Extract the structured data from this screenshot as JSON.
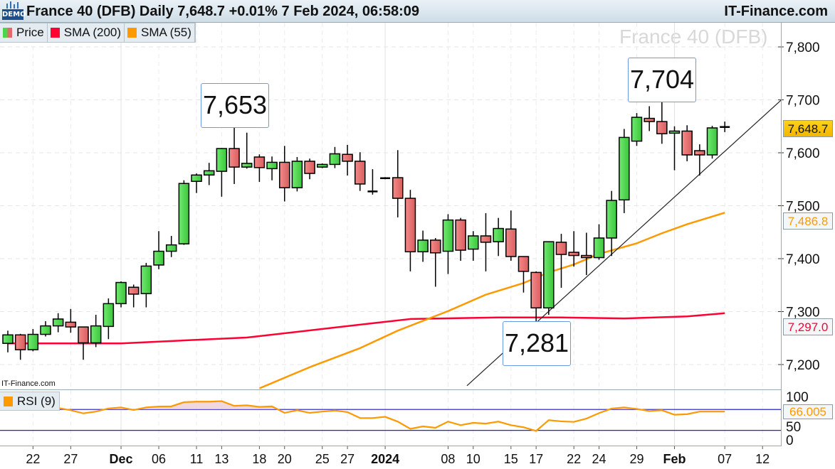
{
  "header": {
    "title": "France 40 (DFB) Daily 7,648.7 +0.01% 7 Feb 2024, 06:58:09",
    "brand": "IT-Finance.com",
    "demo_badge": "DEMO"
  },
  "legend": {
    "items": [
      {
        "label": "Price",
        "color_up": "#4cd64c",
        "color_down": "#e26a6a"
      },
      {
        "label": "SMA (200)",
        "color": "#ff0033"
      },
      {
        "label": "SMA (55)",
        "color": "#ff9900"
      }
    ]
  },
  "watermark_title": "France 40 (DFB)",
  "small_brand": "IT-Finance.com",
  "rsi_legend": {
    "label": "RSI (9)",
    "color": "#ff9900"
  },
  "callouts": {
    "high1": "7,653",
    "high2": "7,704",
    "low1": "7,281"
  },
  "price_tags": {
    "last": "7,648.7",
    "sma55": "7,486.8",
    "sma200": "7,297.0"
  },
  "rsi_tag": "66.005",
  "chart_data": {
    "type": "candlestick",
    "title": "France 40 (DFB) Daily",
    "ylim": [
      7160,
      7860
    ],
    "yticks": [
      "7,200",
      "7,300",
      "7,400",
      "7,500",
      "7,600",
      "7,700",
      "7,800"
    ],
    "ytick_values": [
      7200,
      7300,
      7400,
      7500,
      7600,
      7700,
      7800
    ],
    "grid": true,
    "colors": {
      "up": "#4cd64c",
      "down": "#e26a6a",
      "sma200": "#ff0033",
      "sma55": "#ff9900",
      "rsi": "#ff9900",
      "rsi_bands": "#2222cc",
      "trendline": "#222222"
    },
    "xticks": [
      {
        "label": "22",
        "index": 2,
        "bold": false
      },
      {
        "label": "27",
        "index": 5,
        "bold": false
      },
      {
        "label": "Dec",
        "index": 9,
        "bold": true
      },
      {
        "label": "06",
        "index": 12,
        "bold": false
      },
      {
        "label": "11",
        "index": 15,
        "bold": false
      },
      {
        "label": "13",
        "index": 17,
        "bold": false
      },
      {
        "label": "18",
        "index": 20,
        "bold": false
      },
      {
        "label": "20",
        "index": 22,
        "bold": false
      },
      {
        "label": "25",
        "index": 25,
        "bold": false
      },
      {
        "label": "27",
        "index": 27,
        "bold": false
      },
      {
        "label": "2024",
        "index": 30,
        "bold": true
      },
      {
        "label": "08",
        "index": 35,
        "bold": false
      },
      {
        "label": "10",
        "index": 37,
        "bold": false
      },
      {
        "label": "15",
        "index": 40,
        "bold": false
      },
      {
        "label": "17",
        "index": 42,
        "bold": false
      },
      {
        "label": "22",
        "index": 45,
        "bold": false
      },
      {
        "label": "24",
        "index": 47,
        "bold": false
      },
      {
        "label": "29",
        "index": 50,
        "bold": false
      },
      {
        "label": "Feb",
        "index": 53,
        "bold": true
      },
      {
        "label": "07",
        "index": 57,
        "bold": false
      },
      {
        "label": "12",
        "index": 60,
        "bold": false
      }
    ],
    "ohlc": [
      [
        7240,
        7264,
        7223,
        7256
      ],
      [
        7256,
        7258,
        7209,
        7228
      ],
      [
        7228,
        7267,
        7225,
        7257
      ],
      [
        7257,
        7282,
        7253,
        7273
      ],
      [
        7273,
        7297,
        7261,
        7286
      ],
      [
        7280,
        7305,
        7260,
        7271
      ],
      [
        7271,
        7271,
        7209,
        7241
      ],
      [
        7241,
        7294,
        7233,
        7273
      ],
      [
        7272,
        7325,
        7248,
        7315
      ],
      [
        7315,
        7357,
        7308,
        7355
      ],
      [
        7346,
        7351,
        7308,
        7333
      ],
      [
        7334,
        7392,
        7308,
        7386
      ],
      [
        7388,
        7452,
        7380,
        7414
      ],
      [
        7414,
        7443,
        7403,
        7426
      ],
      [
        7428,
        7548,
        7426,
        7542
      ],
      [
        7546,
        7561,
        7524,
        7558
      ],
      [
        7558,
        7581,
        7539,
        7566
      ],
      [
        7565,
        7609,
        7517,
        7608
      ],
      [
        7608,
        7653,
        7541,
        7573
      ],
      [
        7573,
        7638,
        7570,
        7580
      ],
      [
        7592,
        7597,
        7545,
        7572
      ],
      [
        7570,
        7593,
        7548,
        7582
      ],
      [
        7582,
        7613,
        7508,
        7534
      ],
      [
        7534,
        7592,
        7527,
        7584
      ],
      [
        7584,
        7589,
        7550,
        7561
      ],
      [
        7573,
        7580,
        7571,
        7578
      ],
      [
        7578,
        7611,
        7571,
        7598
      ],
      [
        7597,
        7615,
        7557,
        7584
      ],
      [
        7584,
        7601,
        7528,
        7541
      ],
      [
        7527,
        7569,
        7521,
        7527
      ],
      [
        7552,
        7554,
        7550,
        7552
      ],
      [
        7553,
        7605,
        7478,
        7514
      ],
      [
        7514,
        7530,
        7376,
        7413
      ],
      [
        7413,
        7453,
        7394,
        7435
      ],
      [
        7435,
        7439,
        7347,
        7411
      ],
      [
        7414,
        7484,
        7371,
        7473
      ],
      [
        7473,
        7477,
        7396,
        7416
      ],
      [
        7418,
        7452,
        7396,
        7443
      ],
      [
        7443,
        7486,
        7376,
        7431
      ],
      [
        7432,
        7477,
        7405,
        7457
      ],
      [
        7456,
        7491,
        7396,
        7404
      ],
      [
        7404,
        7404,
        7336,
        7376
      ],
      [
        7374,
        7376,
        7281,
        7307
      ],
      [
        7307,
        7432,
        7294,
        7432
      ],
      [
        7431,
        7447,
        7345,
        7408
      ],
      [
        7412,
        7452,
        7385,
        7406
      ],
      [
        7406,
        7449,
        7369,
        7402
      ],
      [
        7402,
        7465,
        7398,
        7439
      ],
      [
        7439,
        7528,
        7405,
        7510
      ],
      [
        7511,
        7645,
        7486,
        7629
      ],
      [
        7622,
        7675,
        7613,
        7667
      ],
      [
        7665,
        7688,
        7641,
        7659
      ],
      [
        7659,
        7704,
        7617,
        7636
      ],
      [
        7637,
        7650,
        7567,
        7641
      ],
      [
        7641,
        7652,
        7584,
        7596
      ],
      [
        7604,
        7616,
        7557,
        7596
      ],
      [
        7596,
        7651,
        7589,
        7647
      ],
      [
        7647,
        7659,
        7639,
        7648.7
      ]
    ],
    "sma200": [
      [
        0,
        7240
      ],
      [
        9,
        7240
      ],
      [
        19,
        7251
      ],
      [
        29,
        7278
      ],
      [
        32,
        7286
      ],
      [
        39,
        7289
      ],
      [
        44,
        7289
      ],
      [
        49,
        7287
      ],
      [
        54,
        7291
      ],
      [
        57,
        7297.0
      ]
    ],
    "sma55": [
      [
        20,
        7155
      ],
      [
        24,
        7195
      ],
      [
        28,
        7231
      ],
      [
        31,
        7264
      ],
      [
        35,
        7301
      ],
      [
        38,
        7332
      ],
      [
        41,
        7354
      ],
      [
        43,
        7374
      ],
      [
        45,
        7389
      ],
      [
        47,
        7409
      ],
      [
        50,
        7429
      ],
      [
        52,
        7448
      ],
      [
        54,
        7465
      ],
      [
        57,
        7486.8
      ]
    ],
    "trendline": [
      [
        36.5,
        7160
      ],
      [
        61.5,
        7700
      ]
    ],
    "rsi": {
      "ylim": [
        0,
        100
      ],
      "yticks": [
        "100",
        "50",
        "0"
      ],
      "bands": [
        30,
        70
      ],
      "values": [
        72,
        72,
        70,
        72,
        73,
        68.6,
        62.6,
        66,
        72,
        74,
        69,
        74,
        75.7,
        76,
        84,
        85,
        85,
        86,
        77,
        78,
        75,
        76,
        63.5,
        68.6,
        63.5,
        66,
        68,
        65,
        53.6,
        53.6,
        56,
        46.8,
        33,
        37.7,
        35,
        46.8,
        40,
        44.5,
        43,
        46.8,
        40,
        36,
        29,
        49.5,
        47.3,
        46.3,
        52.6,
        63,
        71.7,
        74,
        71,
        67,
        68.6,
        60,
        61,
        66,
        66,
        66.005
      ]
    }
  }
}
